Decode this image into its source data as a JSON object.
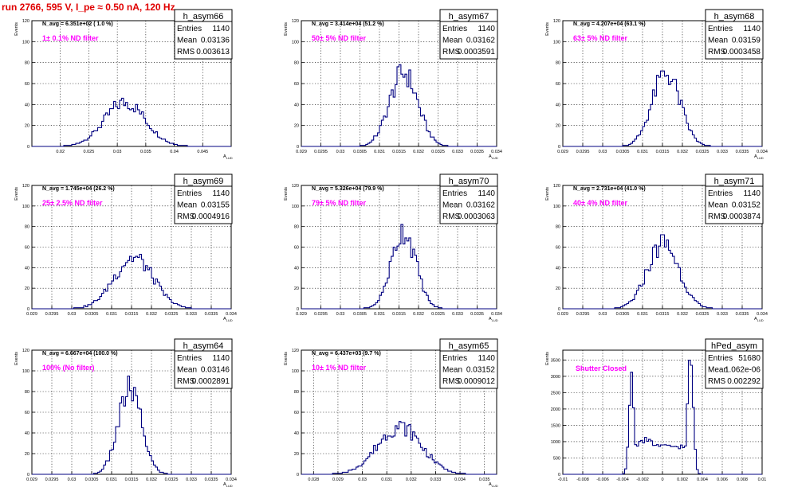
{
  "run_title": "run 2766,   595 V, I_pe ≈ 0.50 nA, 120 Hz",
  "colors": {
    "title": "#e00000",
    "annotation": "#ff00ff",
    "hist_line": "#000080",
    "grid": "#000000"
  },
  "chart_data": [
    {
      "type": "histogram",
      "name": "h_asym66",
      "ylabel": "Events",
      "xlabel": "A_LUD",
      "stats": {
        "entries_label": "Entries",
        "entries": "1140",
        "mean_label": "Mean",
        "mean": "0.03136",
        "rms_label": "RMS",
        "rms": "0.003613"
      },
      "navg_text": "N_avg = 6.351e+02 ( 1.0 %)",
      "filter_text": "1± 0.1% ND filter",
      "xlim": [
        0.015,
        0.05
      ],
      "ylim": [
        0,
        120
      ],
      "xticks": [
        0.02,
        0.025,
        0.03,
        0.035,
        0.04,
        0.045
      ],
      "xtick_labels": [
        "0.02",
        "0.025",
        "0.03",
        "0.035",
        "0.04",
        "0.045"
      ],
      "yticks": [
        0,
        20,
        40,
        60,
        80,
        100,
        120
      ],
      "mean": 0.03136,
      "rms": 0.0036,
      "peak": 42,
      "shape": "gauss"
    },
    {
      "type": "histogram",
      "name": "h_asym67",
      "ylabel": "Events",
      "xlabel": "A_LUD",
      "stats": {
        "entries_label": "Entries",
        "entries": "1140",
        "mean_label": "Mean",
        "mean": "0.03162",
        "rms_label": "RMS",
        "rms": "0.0003591"
      },
      "navg_text": "N_avg = 3.414e+04 (51.2 %)",
      "filter_text": "50± 5% ND filter",
      "xlim": [
        0.029,
        0.034
      ],
      "ylim": [
        0,
        120
      ],
      "xticks": [
        0.029,
        0.0295,
        0.03,
        0.0305,
        0.031,
        0.0315,
        0.032,
        0.0325,
        0.033,
        0.0335,
        0.034
      ],
      "xtick_labels": [
        "0.029",
        "0.0295",
        "0.03",
        "0.0305",
        "0.031",
        "0.0315",
        "0.032",
        "0.0325",
        "0.033",
        "0.0335",
        "0.034"
      ],
      "yticks": [
        0,
        20,
        40,
        60,
        80,
        100,
        120
      ],
      "mean": 0.03162,
      "rms": 0.00036,
      "peak": 70,
      "shape": "gauss"
    },
    {
      "type": "histogram",
      "name": "h_asym68",
      "ylabel": "Events",
      "xlabel": "A_LUD",
      "stats": {
        "entries_label": "Entries",
        "entries": "1140",
        "mean_label": "Mean",
        "mean": "0.03159",
        "rms_label": "RMS",
        "rms": "0.0003458"
      },
      "navg_text": "N_avg = 4.207e+04 (63.1 %)",
      "filter_text": "63± 5% ND filter",
      "xlim": [
        0.029,
        0.034
      ],
      "ylim": [
        0,
        120
      ],
      "xticks": [
        0.029,
        0.0295,
        0.03,
        0.0305,
        0.031,
        0.0315,
        0.032,
        0.0325,
        0.033,
        0.0335,
        0.034
      ],
      "xtick_labels": [
        "0.029",
        "0.0295",
        "0.03",
        "0.0305",
        "0.031",
        "0.0315",
        "0.032",
        "0.0325",
        "0.033",
        "0.0335",
        "0.034"
      ],
      "yticks": [
        0,
        20,
        40,
        60,
        80,
        100,
        120
      ],
      "mean": 0.03159,
      "rms": 0.00035,
      "peak": 70,
      "shape": "gauss"
    },
    {
      "type": "histogram",
      "name": "h_asym69",
      "ylabel": "Events",
      "xlabel": "A_LUD",
      "stats": {
        "entries_label": "Entries",
        "entries": "1140",
        "mean_label": "Mean",
        "mean": "0.03155",
        "rms_label": "RMS",
        "rms": "0.0004916"
      },
      "navg_text": "N_avg = 1.745e+04 (26.2 %)",
      "filter_text": "25± 2.5% ND filter",
      "xlim": [
        0.029,
        0.034
      ],
      "ylim": [
        0,
        120
      ],
      "xticks": [
        0.029,
        0.0295,
        0.03,
        0.0305,
        0.031,
        0.0315,
        0.032,
        0.0325,
        0.033,
        0.0335,
        0.034
      ],
      "xtick_labels": [
        "0.029",
        "0.0295",
        "0.03",
        "0.0305",
        "0.031",
        "0.0315",
        "0.032",
        "0.0325",
        "0.033",
        "0.0335",
        "0.034"
      ],
      "yticks": [
        0,
        20,
        40,
        60,
        80,
        100,
        120
      ],
      "mean": 0.03155,
      "rms": 0.00049,
      "peak": 50,
      "shape": "gauss"
    },
    {
      "type": "histogram",
      "name": "h_asym70",
      "ylabel": "Events",
      "xlabel": "A_LUD",
      "stats": {
        "entries_label": "Entries",
        "entries": "1140",
        "mean_label": "Mean",
        "mean": "0.03162",
        "rms_label": "RMS",
        "rms": "0.0003063"
      },
      "navg_text": "N_avg = 5.326e+04 (79.9 %)",
      "filter_text": "79± 5% ND filter",
      "xlim": [
        0.029,
        0.034
      ],
      "ylim": [
        0,
        120
      ],
      "xticks": [
        0.029,
        0.0295,
        0.03,
        0.0305,
        0.031,
        0.0315,
        0.032,
        0.0325,
        0.033,
        0.0335,
        0.034
      ],
      "xtick_labels": [
        "0.029",
        "0.0295",
        "0.03",
        "0.0305",
        "0.031",
        "0.0315",
        "0.032",
        "0.0325",
        "0.033",
        "0.0335",
        "0.034"
      ],
      "yticks": [
        0,
        20,
        40,
        60,
        80,
        100,
        120
      ],
      "mean": 0.03162,
      "rms": 0.00031,
      "peak": 76,
      "shape": "gauss"
    },
    {
      "type": "histogram",
      "name": "h_asym71",
      "ylabel": "Events",
      "xlabel": "A_LUD",
      "stats": {
        "entries_label": "Entries",
        "entries": "1140",
        "mean_label": "Mean",
        "mean": "0.03152",
        "rms_label": "RMS",
        "rms": "0.0003874"
      },
      "navg_text": "N_avg = 2.731e+04 (41.0 %)",
      "filter_text": "40± 4% ND filter",
      "xlim": [
        0.029,
        0.034
      ],
      "ylim": [
        0,
        120
      ],
      "xticks": [
        0.029,
        0.0295,
        0.03,
        0.0305,
        0.031,
        0.0315,
        0.032,
        0.0325,
        0.033,
        0.0335,
        0.034
      ],
      "xtick_labels": [
        "0.029",
        "0.0295",
        "0.03",
        "0.0305",
        "0.031",
        "0.0315",
        "0.032",
        "0.0325",
        "0.033",
        "0.0335",
        "0.034"
      ],
      "yticks": [
        0,
        20,
        40,
        60,
        80,
        100,
        120
      ],
      "mean": 0.03152,
      "rms": 0.00039,
      "peak": 64,
      "shape": "gauss"
    },
    {
      "type": "histogram",
      "name": "h_asym64",
      "ylabel": "Events",
      "xlabel": "A_LUD",
      "stats": {
        "entries_label": "Entries",
        "entries": "1140",
        "mean_label": "Mean",
        "mean": "0.03146",
        "rms_label": "RMS",
        "rms": "0.0002891"
      },
      "navg_text": "N_avg = 6.667e+04 (100.0 %)",
      "filter_text": "100% (No filter)",
      "xlim": [
        0.029,
        0.034
      ],
      "ylim": [
        0,
        120
      ],
      "xticks": [
        0.029,
        0.0295,
        0.03,
        0.0305,
        0.031,
        0.0315,
        0.032,
        0.0325,
        0.033,
        0.0335,
        0.034
      ],
      "xtick_labels": [
        "0.029",
        "0.0295",
        "0.03",
        "0.0305",
        "0.031",
        "0.0315",
        "0.032",
        "0.0325",
        "0.033",
        "0.0335",
        "0.034"
      ],
      "yticks": [
        0,
        20,
        40,
        60,
        80,
        100,
        120
      ],
      "mean": 0.03146,
      "rms": 0.00029,
      "peak": 82,
      "shape": "gauss"
    },
    {
      "type": "histogram",
      "name": "h_asym65",
      "ylabel": "Events",
      "xlabel": "A_LUD",
      "stats": {
        "entries_label": "Entries",
        "entries": "1140",
        "mean_label": "Mean",
        "mean": "0.03152",
        "rms_label": "RMS",
        "rms": "0.0009012"
      },
      "navg_text": "N_avg = 6.437e+03 (9.7 %)",
      "filter_text": "10± 1% ND filter",
      "xlim": [
        0.0275,
        0.0355
      ],
      "ylim": [
        0,
        120
      ],
      "xticks": [
        0.028,
        0.029,
        0.03,
        0.031,
        0.032,
        0.033,
        0.034,
        0.035
      ],
      "xtick_labels": [
        "0.028",
        "0.029",
        "0.03",
        "0.031",
        "0.032",
        "0.033",
        "0.034",
        "0.035"
      ],
      "yticks": [
        0,
        20,
        40,
        60,
        80,
        100,
        120
      ],
      "mean": 0.03152,
      "rms": 0.0009,
      "peak": 46,
      "shape": "gauss"
    },
    {
      "type": "histogram",
      "name": "hPed_asym",
      "ylabel": "Events",
      "xlabel": "",
      "stats": {
        "entries_label": "Entries",
        "entries": "51680",
        "mean_label": "Mean",
        "mean": "1.062e-06",
        "rms_label": "RMS",
        "rms": "0.002292"
      },
      "navg_text": "",
      "filter_text": "Shutter Closed",
      "xlim": [
        -0.01,
        0.01
      ],
      "ylim": [
        0,
        3800
      ],
      "xticks": [
        -0.01,
        -0.008,
        -0.006,
        -0.004,
        -0.002,
        0,
        0.002,
        0.004,
        0.006,
        0.008,
        0.01
      ],
      "xtick_labels": [
        "-0.01",
        "-0.008",
        "-0.006",
        "-0.004",
        "-0.002",
        "0",
        "0.002",
        "0.004",
        "0.006",
        "0.008",
        "0.01"
      ],
      "yticks": [
        0,
        500,
        1000,
        1500,
        2000,
        2500,
        3000,
        3500
      ],
      "mean": 0.0,
      "rms": 0.0023,
      "peak": 3600,
      "shape": "bimodal"
    }
  ]
}
